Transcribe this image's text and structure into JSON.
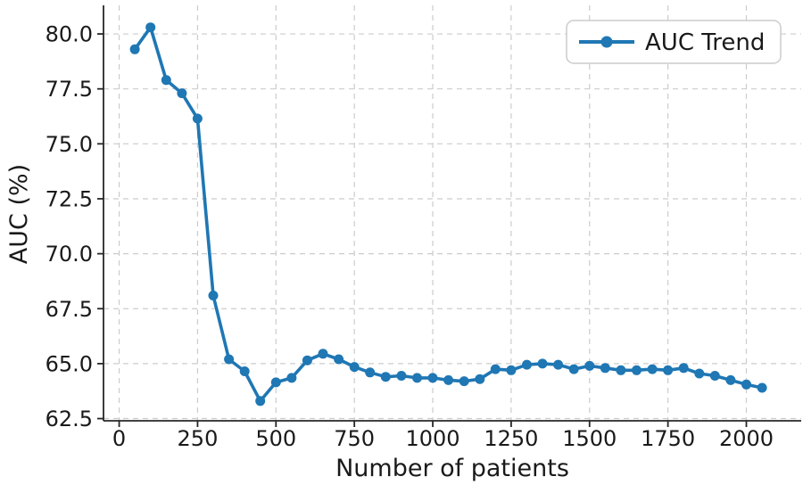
{
  "chart_data": {
    "type": "line",
    "title": "",
    "xlabel": "Number of patients",
    "ylabel": "AUC (%)",
    "legend": {
      "label": "AUC Trend",
      "position": "upper right"
    },
    "grid": true,
    "line_color": "#1f77b4",
    "marker": "circle",
    "grid_color": "#cccccc",
    "spine_color": "#262626",
    "text_color": "#1a1a1a",
    "xlim": [
      -50,
      2175
    ],
    "ylim": [
      62.4,
      81.3
    ],
    "x_ticks": [
      0,
      250,
      500,
      750,
      1000,
      1250,
      1500,
      1750,
      2000
    ],
    "y_ticks": [
      62.5,
      65.0,
      67.5,
      70.0,
      72.5,
      75.0,
      77.5,
      80.0
    ],
    "x": [
      50,
      100,
      150,
      200,
      250,
      300,
      350,
      400,
      450,
      500,
      550,
      600,
      650,
      700,
      750,
      800,
      850,
      900,
      950,
      1000,
      1050,
      1100,
      1150,
      1200,
      1250,
      1300,
      1350,
      1400,
      1450,
      1500,
      1550,
      1600,
      1650,
      1700,
      1750,
      1800,
      1850,
      1900,
      1950,
      2000,
      2050
    ],
    "series": [
      {
        "name": "AUC Trend",
        "values": [
          79.3,
          80.3,
          77.9,
          77.3,
          76.15,
          68.1,
          65.2,
          64.65,
          63.3,
          64.15,
          64.35,
          65.15,
          65.45,
          65.2,
          64.85,
          64.6,
          64.4,
          64.45,
          64.35,
          64.35,
          64.25,
          64.2,
          64.3,
          64.75,
          64.7,
          64.95,
          65.0,
          64.95,
          64.75,
          64.9,
          64.8,
          64.7,
          64.7,
          64.75,
          64.7,
          64.8,
          64.55,
          64.45,
          64.25,
          64.05,
          63.9
        ]
      }
    ]
  }
}
